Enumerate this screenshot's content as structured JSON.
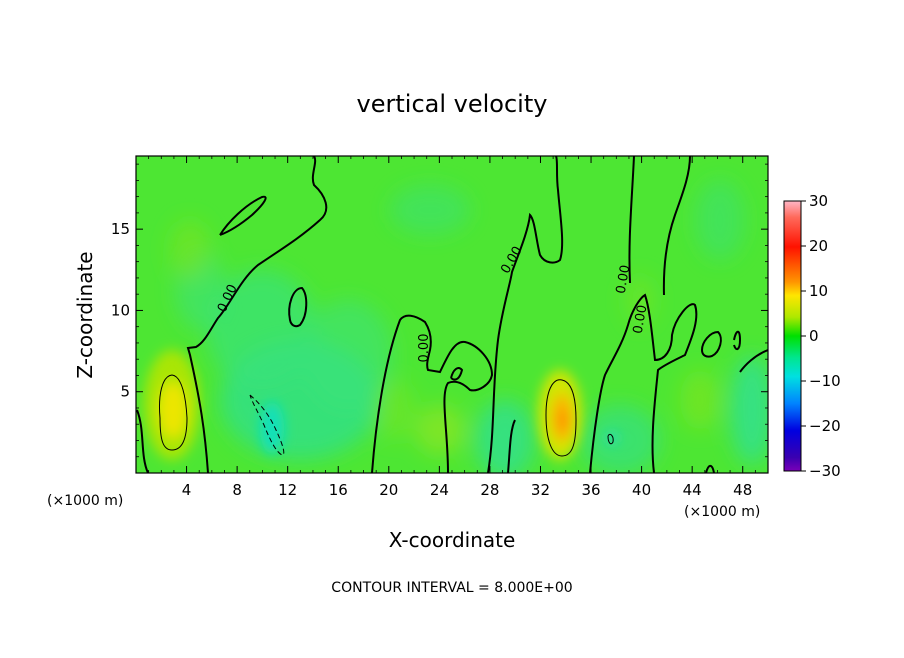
{
  "chart_data": {
    "type": "heatmap",
    "title": "vertical velocity",
    "xlabel": "X-coordinate",
    "ylabel": "Z-coordinate",
    "x_unit": "(×1000 m)",
    "xlim": [
      0,
      50
    ],
    "ylim": [
      0,
      19.5
    ],
    "xticks": [
      4,
      8,
      12,
      16,
      20,
      24,
      28,
      32,
      36,
      40,
      44,
      48
    ],
    "yticks": [
      5,
      10,
      15
    ],
    "colorbar": {
      "ticks": [
        30,
        20,
        10,
        0,
        -10,
        -20,
        -30
      ],
      "range": [
        -30,
        30
      ]
    },
    "annotation": "CONTOUR INTERVAL = 8.000E+00",
    "contour_labels": [
      "0.00",
      "0.00",
      "0.00",
      "0.00",
      "0.00",
      "0.00"
    ],
    "highlights": [
      {
        "x": 3.0,
        "z": 3.8,
        "w": 12
      },
      {
        "x": 33.4,
        "z": 3.3,
        "w": 15
      },
      {
        "x": 10.0,
        "z": 3.0,
        "w": -8
      },
      {
        "x": 1.7,
        "z": 8.0,
        "w": 5
      },
      {
        "x": 24.0,
        "z": 4.0,
        "w": 4
      },
      {
        "x": 45.5,
        "z": 5.0,
        "w": 3
      }
    ]
  }
}
